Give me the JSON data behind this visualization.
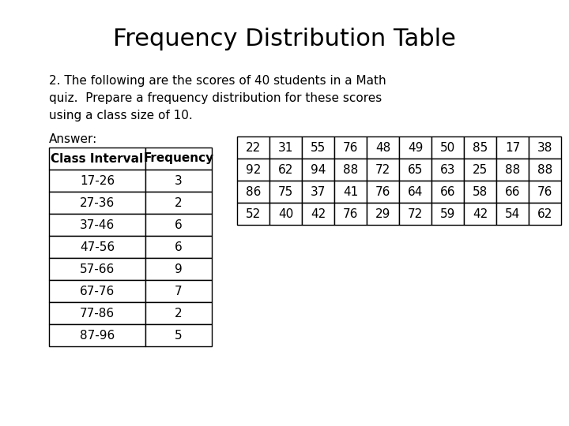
{
  "title": "Frequency Distribution Table",
  "description_lines": [
    "2. The following are the scores of 40 students in a Math",
    "quiz.  Prepare a frequency distribution for these scores",
    "using a class size of 10."
  ],
  "answer_label": "Answer:",
  "freq_table_headers": [
    "Class Interval",
    "Frequency"
  ],
  "freq_table_rows": [
    [
      "17-26",
      "3"
    ],
    [
      "27-36",
      "2"
    ],
    [
      "37-46",
      "6"
    ],
    [
      "47-56",
      "6"
    ],
    [
      "57-66",
      "9"
    ],
    [
      "67-76",
      "7"
    ],
    [
      "77-86",
      "2"
    ],
    [
      "87-96",
      "5"
    ]
  ],
  "scores_table": [
    [
      22,
      31,
      55,
      76,
      48,
      49,
      50,
      85,
      17,
      38
    ],
    [
      92,
      62,
      94,
      88,
      72,
      65,
      63,
      25,
      88,
      88
    ],
    [
      86,
      75,
      37,
      41,
      76,
      64,
      66,
      58,
      66,
      76
    ],
    [
      52,
      40,
      42,
      76,
      29,
      72,
      59,
      42,
      54,
      62
    ]
  ],
  "bg_color": "#ffffff",
  "text_color": "#000000",
  "title_fontsize": 22,
  "body_fontsize": 11,
  "table_fontsize": 11
}
